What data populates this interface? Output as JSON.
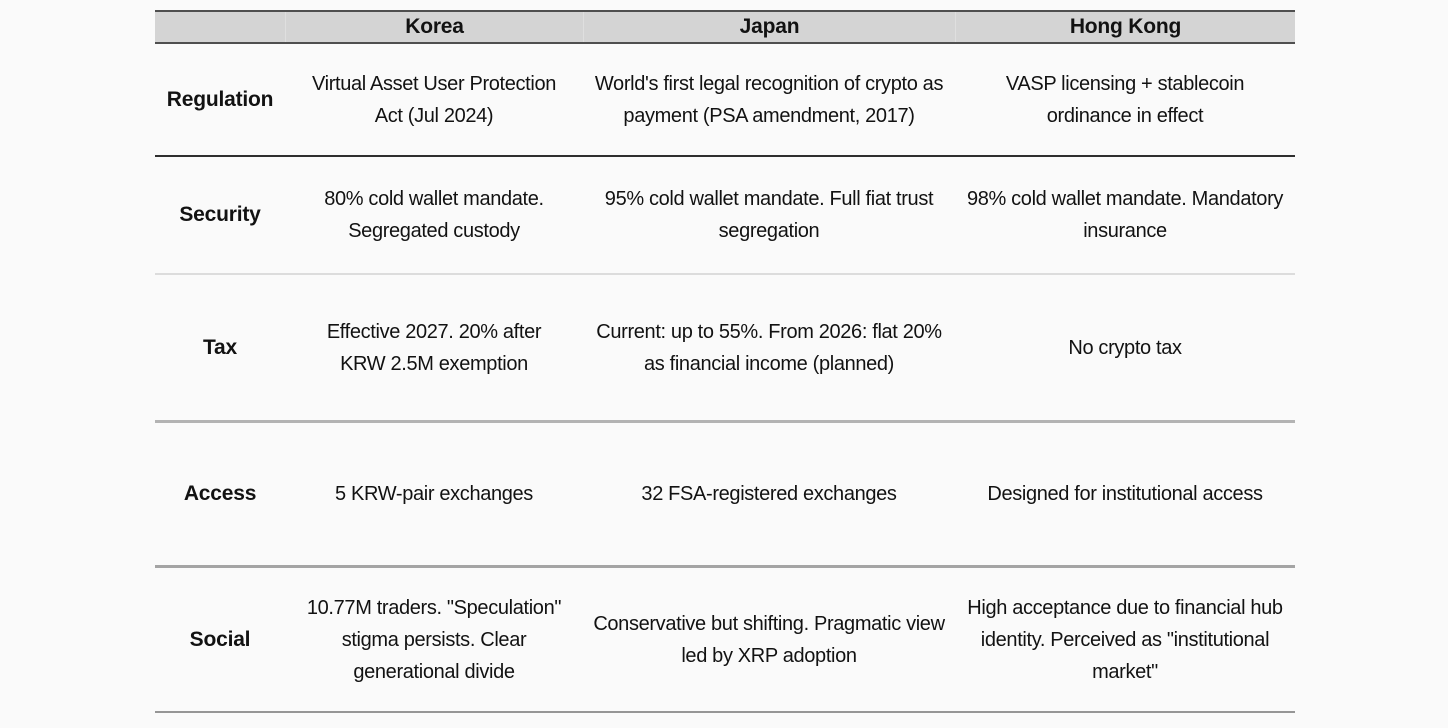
{
  "chart_data": {
    "type": "table",
    "title": "",
    "columns": [
      "",
      "Korea",
      "Japan",
      "Hong Kong"
    ],
    "row_labels": [
      "Regulation",
      "Security",
      "Tax",
      "Access",
      "Social"
    ],
    "rows": [
      [
        "Virtual Asset User Protection\nAct (Jul 2024)",
        "World's first legal recognition of crypto as\npayment (PSA amendment, 2017)",
        "VASP licensing + stablecoin\nordinance in effect"
      ],
      [
        "80% cold wallet mandate.\nSegregated custody",
        "95% cold wallet mandate. Full fiat trust\nsegregation",
        "98% cold wallet mandate. Mandatory\ninsurance"
      ],
      [
        "Effective 2027. 20% after\nKRW 2.5M exemption",
        "Current: up to 55%. From 2026: flat 20%\nas financial income (planned)",
        "No crypto tax"
      ],
      [
        "5 KRW-pair exchanges",
        "32 FSA-registered exchanges",
        "Designed for institutional access"
      ],
      [
        "10.77M traders. \"Speculation\"\nstigma persists. Clear\ngenerational divide",
        "Conservative but shifting. Pragmatic view\nled by XRP adoption",
        "High acceptance due to financial hub\nidentity. Perceived as \"institutional\nmarket\""
      ]
    ],
    "layout": {
      "grid": "horizontal dividers only",
      "header_background": true,
      "text_alignment": "center"
    }
  },
  "colors": {
    "page_bg": "#fafafa",
    "text": "#121212",
    "header_bg": "#d4d4d4",
    "header_border": "#4f4f4f",
    "divider_after_regulation": "#2e2e2e",
    "divider_after_security": "#dcdcdc",
    "divider_after_tax": "#b3b3b3",
    "divider_after_access": "#a4a4a4",
    "bottom_border": "#969696"
  }
}
